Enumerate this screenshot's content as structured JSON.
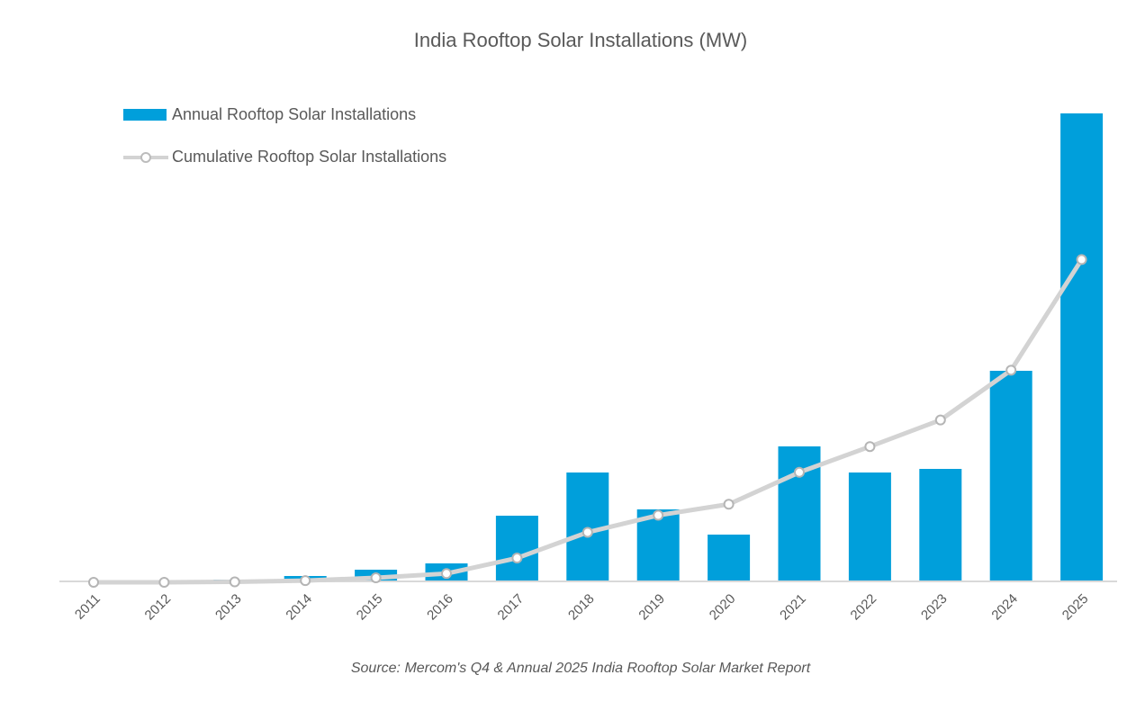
{
  "chart_data": {
    "type": "bar+line",
    "title": "India Rooftop Solar Installations (MW)",
    "xlabel": "",
    "ylabel": "",
    "axes_note": "No value axis shown; values are estimated relative magnitudes (MW) read from bar/point heights",
    "categories": [
      "2011",
      "2012",
      "2013",
      "2014",
      "2015",
      "2016",
      "2017",
      "2018",
      "2019",
      "2020",
      "2021",
      "2022",
      "2023",
      "2024",
      "2025"
    ],
    "series": [
      {
        "name": "Annual Rooftop Solar Installations",
        "type": "bar",
        "color": "#009fdb",
        "axis": "primary",
        "values": [
          0,
          0,
          20,
          60,
          130,
          200,
          730,
          1210,
          800,
          520,
          1500,
          1210,
          1250,
          2340,
          5200
        ]
      },
      {
        "name": "Cumulative Rooftop Solar Installations",
        "type": "line",
        "color": "#d3d3d3",
        "axis": "secondary",
        "values": [
          0,
          0,
          20,
          80,
          210,
          410,
          1140,
          2350,
          3150,
          3670,
          5170,
          6380,
          7630,
          9970,
          15170
        ]
      }
    ],
    "ylim_primary": [
      0,
      5200
    ],
    "ylim_secondary": [
      0,
      22000
    ],
    "grid": false,
    "legend_position": "top-left",
    "source": "Source: Mercom's Q4 & Annual 2025 India Rooftop Solar Market Report"
  }
}
